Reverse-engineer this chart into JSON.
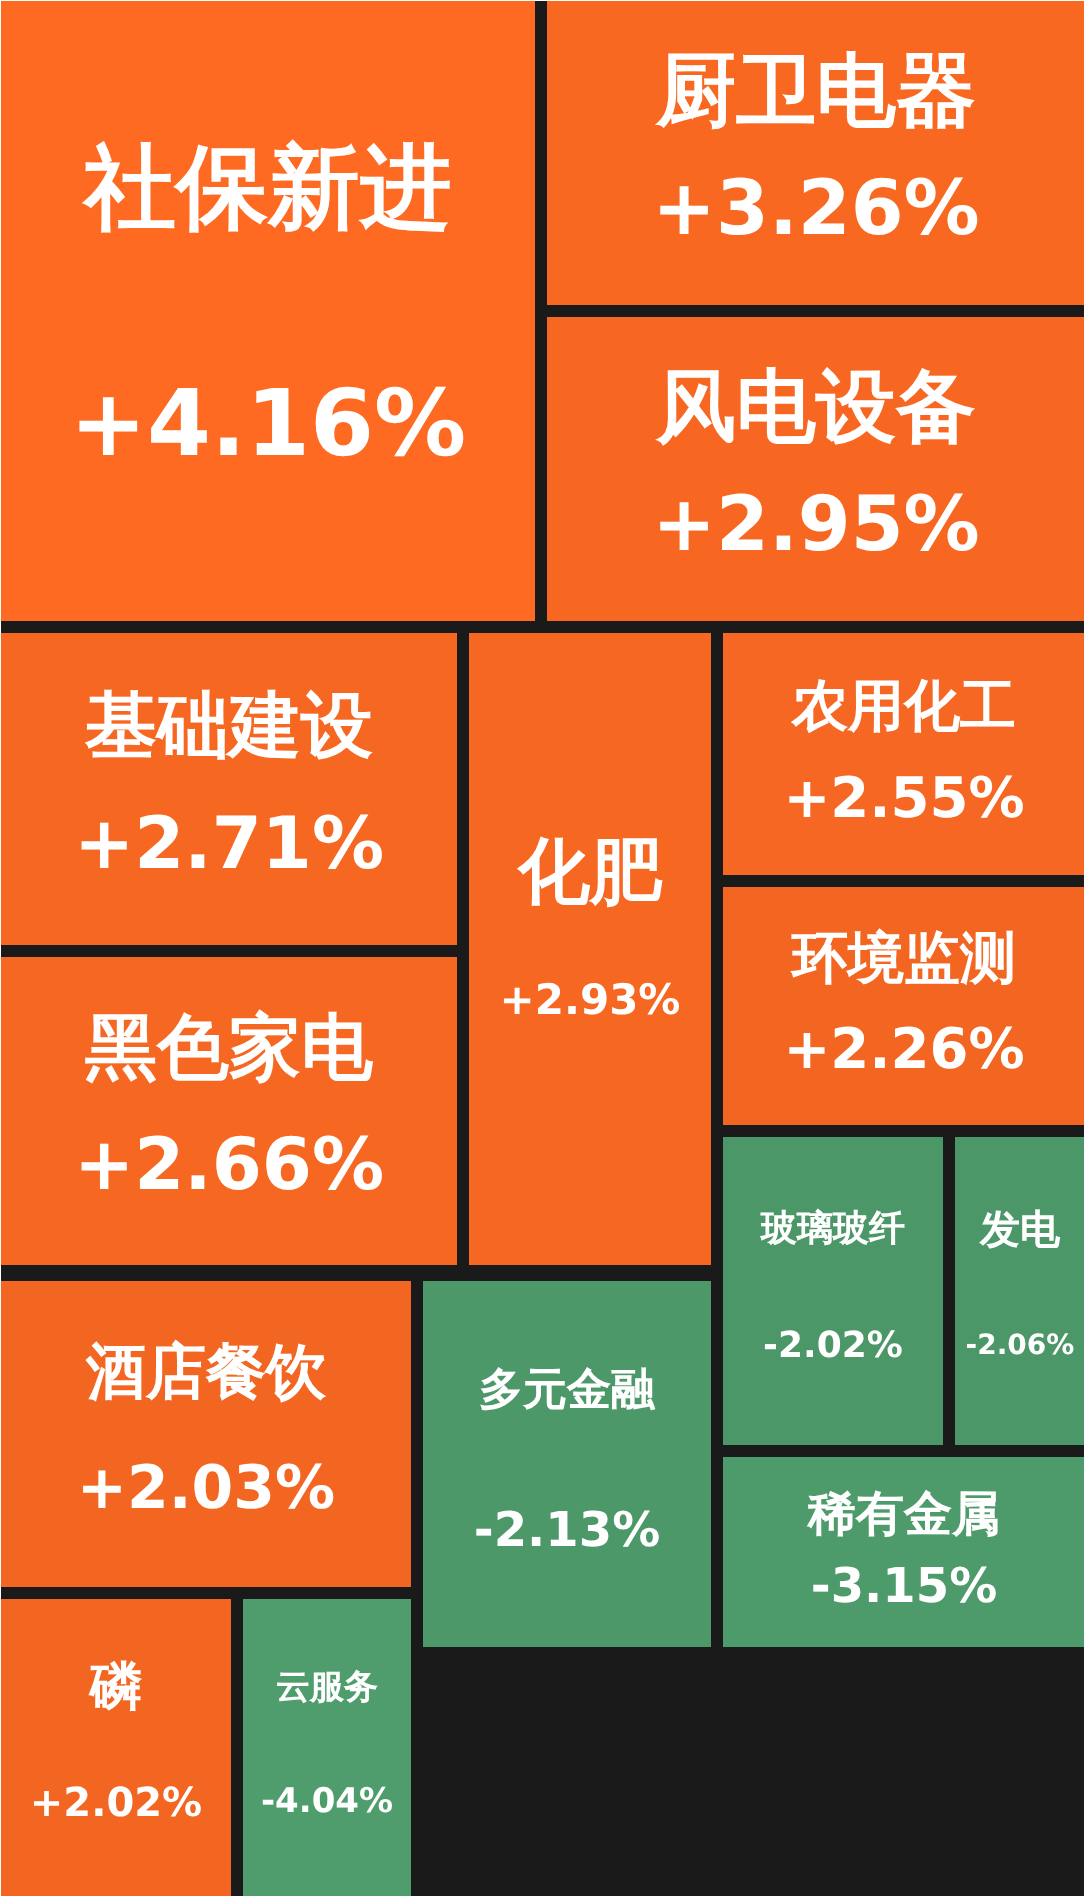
{
  "chart_data": {
    "type": "other",
    "categories": [
      "社保新进",
      "厨卫电器",
      "风电设备",
      "基础建设",
      "黑色家电",
      "化肥",
      "农用化工",
      "环境监测",
      "玻璃玻纤",
      "发电",
      "稀有金属",
      "多元金融",
      "酒店餐饮",
      "磷",
      "云服务"
    ],
    "values": [
      4.16,
      3.26,
      2.95,
      2.71,
      2.66,
      2.93,
      2.55,
      2.26,
      -2.02,
      -2.06,
      -3.15,
      -2.13,
      2.03,
      2.02,
      -4.04
    ],
    "colors": [
      "#fe6a22",
      "#fe6a22",
      "#fe6a22",
      "#fe6a22",
      "#fe6a22",
      "#fe6a22",
      "#fe6a22",
      "#fe6a22",
      "#4f9e6d",
      "#4f9e6d",
      "#4f9e6d",
      "#4f9e6d",
      "#fe6a22",
      "#fe6a22",
      "#4f9e6d"
    ],
    "value_labels": [
      "+4.16%",
      "+3.26%",
      "+2.95%",
      "+2.71%",
      "+2.66%",
      "+2.93%",
      "+2.55%",
      "+2.26%",
      "-2.02%",
      "-2.06%",
      "-3.15%",
      "-2.13%",
      "+2.03%",
      "+2.02%",
      "-4.04%"
    ]
  }
}
